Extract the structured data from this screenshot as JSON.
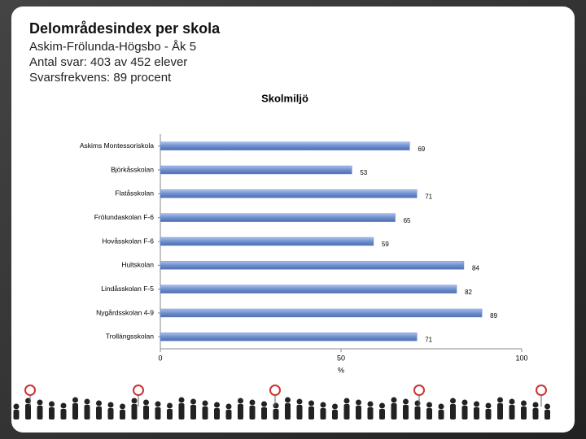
{
  "header": {
    "title": "Delområdesindex per skola",
    "lines": [
      "Askim-Frölunda-Högsbo - Åk 5",
      "Antal svar: 403 av 452 elever",
      "Svarsfrekvens: 89 procent"
    ]
  },
  "chart_data": {
    "type": "hbar",
    "title": "Skolmiljö",
    "x_label": "%",
    "categories": [
      "Askims Montessoriskola",
      "Björkåsskolan",
      "Flatåsskolan",
      "Frölundaskolan F-6",
      "Hovåsskolan F-6",
      "Hultskolan",
      "Lindåsskolan F-5",
      "Nygårdsskolan 4-9",
      "Trollängsskolan"
    ],
    "values": [
      69,
      53,
      71,
      65,
      59,
      84,
      82,
      89,
      71
    ],
    "color": "#6f8fcf",
    "xlim": [
      0,
      100
    ],
    "xticks": [
      0,
      50,
      100
    ]
  }
}
